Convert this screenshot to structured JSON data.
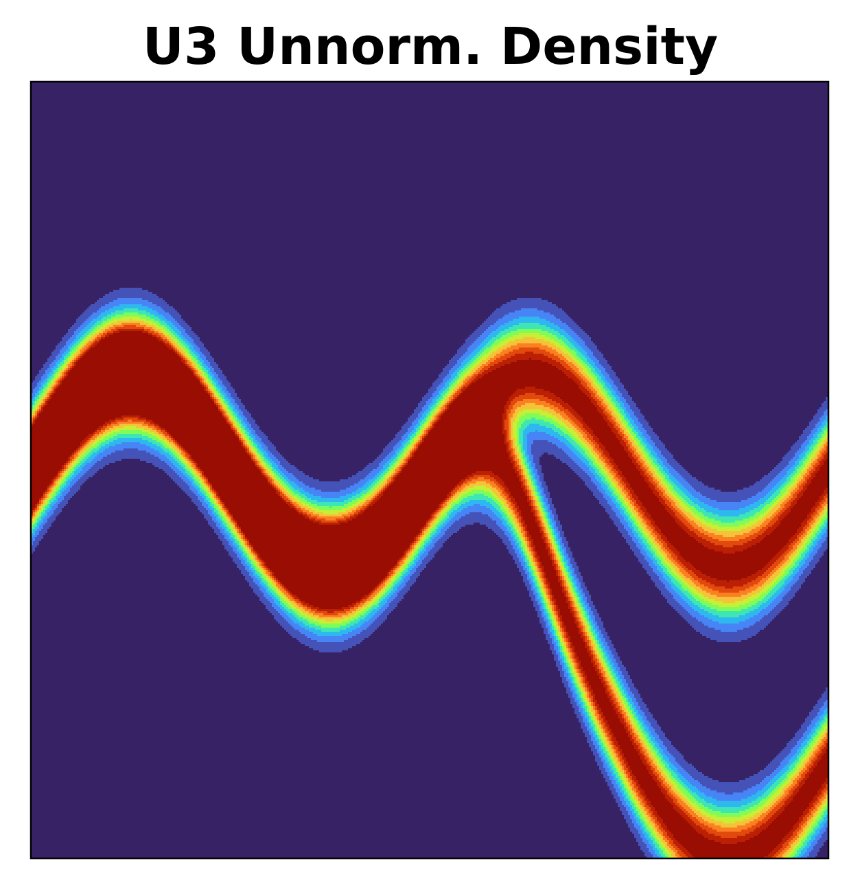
{
  "chart_data": {
    "type": "heatmap",
    "title": "U3 Unnorm. Density",
    "xlabel": "",
    "ylabel": "",
    "x_range": [
      -4,
      4
    ],
    "y_range": [
      -4,
      4
    ],
    "grid": false,
    "ticks_visible": false,
    "legend": "none",
    "colormap": "turbo",
    "contour_levels": 12,
    "density_function": "U3 potential: z2 - w1(z1) with w1 = sin(pi*z1/2), w3 = 3*sigmoid((z1-1)/0.3); density = exp(-U3)",
    "colors": {
      "background": "#382266",
      "levels": [
        "#382266",
        "#4552b8",
        "#4784f5",
        "#2fb7f0",
        "#3ee5b5",
        "#7efc5a",
        "#c8ee35",
        "#f5c23a",
        "#fb8022",
        "#e24a0d",
        "#bb2004",
        "#9a0d02"
      ]
    }
  }
}
